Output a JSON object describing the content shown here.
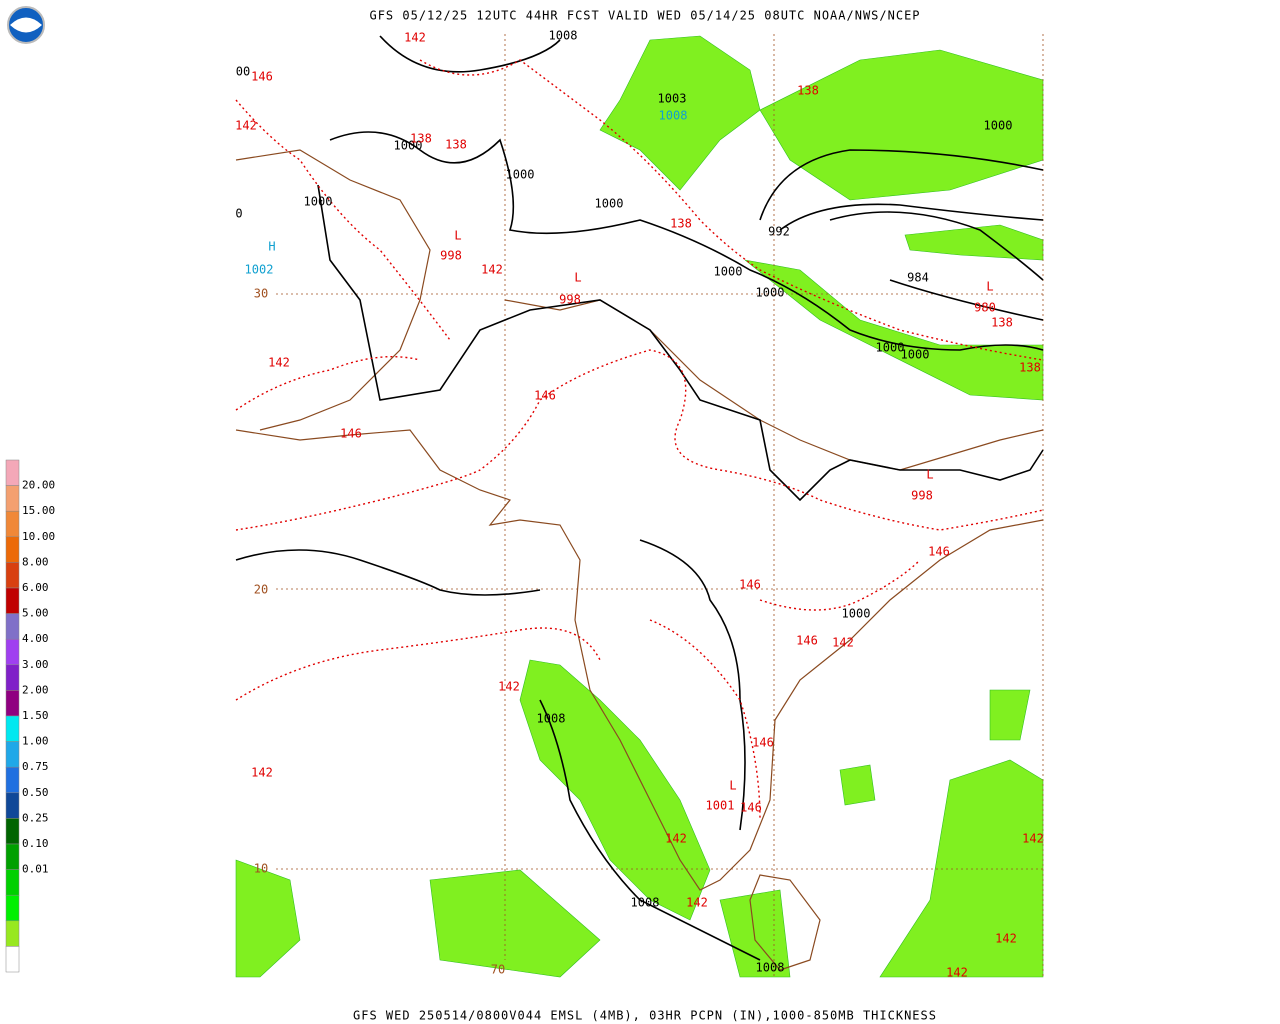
{
  "header": {
    "title": "GFS 05/12/25 12UTC 44HR FCST VALID WED 05/14/25 08UTC NOAA/NWS/NCEP"
  },
  "footer": {
    "text": "GFS WED 250514/0800V044 EMSL (4MB), 03HR PCPN (IN),1000-850MB THICKNESS"
  },
  "legend": {
    "labels": [
      "20.00",
      "15.00",
      "10.00",
      "8.00",
      "6.00",
      "5.00",
      "4.00",
      "3.00",
      "2.00",
      "1.50",
      "1.00",
      "0.75",
      "0.50",
      "0.25",
      "0.10",
      "0.01"
    ],
    "colors": [
      "#f4a8b8",
      "#f4a070",
      "#f08838",
      "#ec6a08",
      "#d84010",
      "#c00000",
      "#8070c8",
      "#a040f0",
      "#8020c8",
      "#900080",
      "#00e8f0",
      "#20a8e8",
      "#2070e0",
      "#104898",
      "#006400",
      "#00a000",
      "#00d000",
      "#00f000",
      "#98e820",
      "#ffffff"
    ]
  },
  "map": {
    "black_labels": [
      "1008",
      "1003",
      "1000",
      "1000",
      "1000",
      "1000",
      "992",
      "1000",
      "984",
      "1000",
      "1000",
      "1000",
      "1000",
      "1000",
      "1008",
      "1008",
      "1008",
      "00",
      "0"
    ],
    "red_labels": [
      "142",
      "146",
      "142",
      "138",
      "138",
      "138",
      "138",
      "142",
      "998",
      "998",
      "980",
      "138",
      "142",
      "146",
      "146",
      "138",
      "998",
      "146",
      "146",
      "146",
      "142",
      "142",
      "146",
      "142",
      "1001",
      "146",
      "142",
      "142",
      "142",
      "142",
      "142"
    ],
    "cyan_labels": [
      "1008",
      "1002"
    ],
    "lows": [
      "L",
      "L",
      "L",
      "L",
      "L"
    ],
    "high": "H",
    "grid_labels": [
      "30",
      "20",
      "10",
      "70"
    ]
  }
}
